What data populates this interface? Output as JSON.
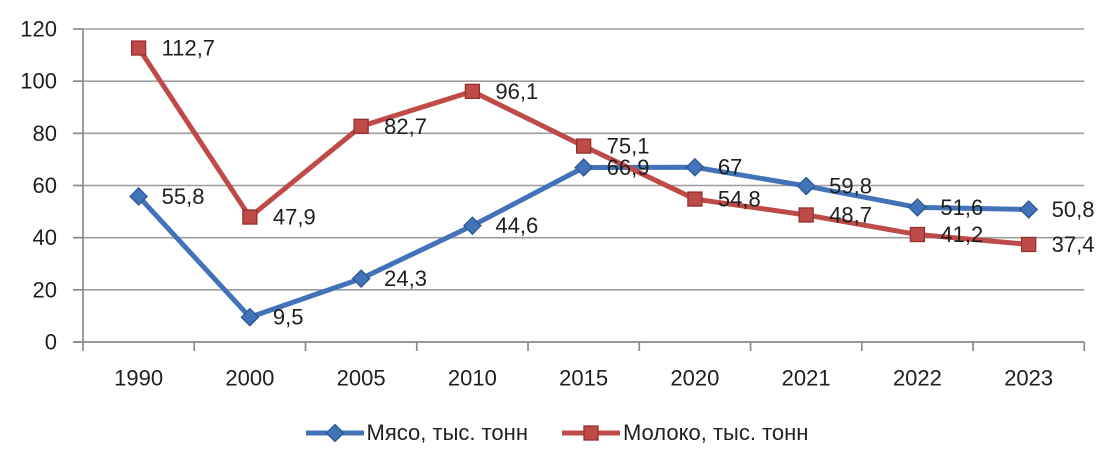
{
  "chart_data": {
    "type": "line",
    "categories": [
      "1990",
      "2000",
      "2005",
      "2010",
      "2015",
      "2020",
      "2021",
      "2022",
      "2023"
    ],
    "series": [
      {
        "name": "Мясо, тыс. тонн",
        "values": [
          55.8,
          9.5,
          24.3,
          44.6,
          66.9,
          67,
          59.8,
          51.6,
          50.8
        ],
        "point_labels": [
          "55,8",
          "9,5",
          "24,3",
          "44,6",
          "66,9",
          "67",
          "59,8",
          "51,6",
          "50,8"
        ],
        "color": "#4273B8",
        "marker_outline": "#2C5693",
        "marker": "diamond"
      },
      {
        "name": "Молоко, тыс. тонн",
        "values": [
          112.7,
          47.9,
          82.7,
          96.1,
          75.1,
          54.8,
          48.7,
          41.2,
          37.4
        ],
        "point_labels": [
          "112,7",
          "47,9",
          "82,7",
          "96,1",
          "75,1",
          "54,8",
          "48,7",
          "41,2",
          "37,4"
        ],
        "color": "#BF4B48",
        "marker_outline": "#952F2D",
        "marker": "square"
      }
    ],
    "title": "",
    "xlabel": "",
    "ylabel": "",
    "ylim": [
      0,
      120
    ],
    "ytick_step": 20,
    "ytick_labels": [
      "0",
      "20",
      "40",
      "60",
      "80",
      "100",
      "120"
    ],
    "grid": true,
    "legend_position": "bottom",
    "colors": {
      "gridline": "#9D9D9D",
      "axis": "#8A8A8A",
      "text": "#1F1F1F",
      "background": "#FFFFFF"
    }
  }
}
